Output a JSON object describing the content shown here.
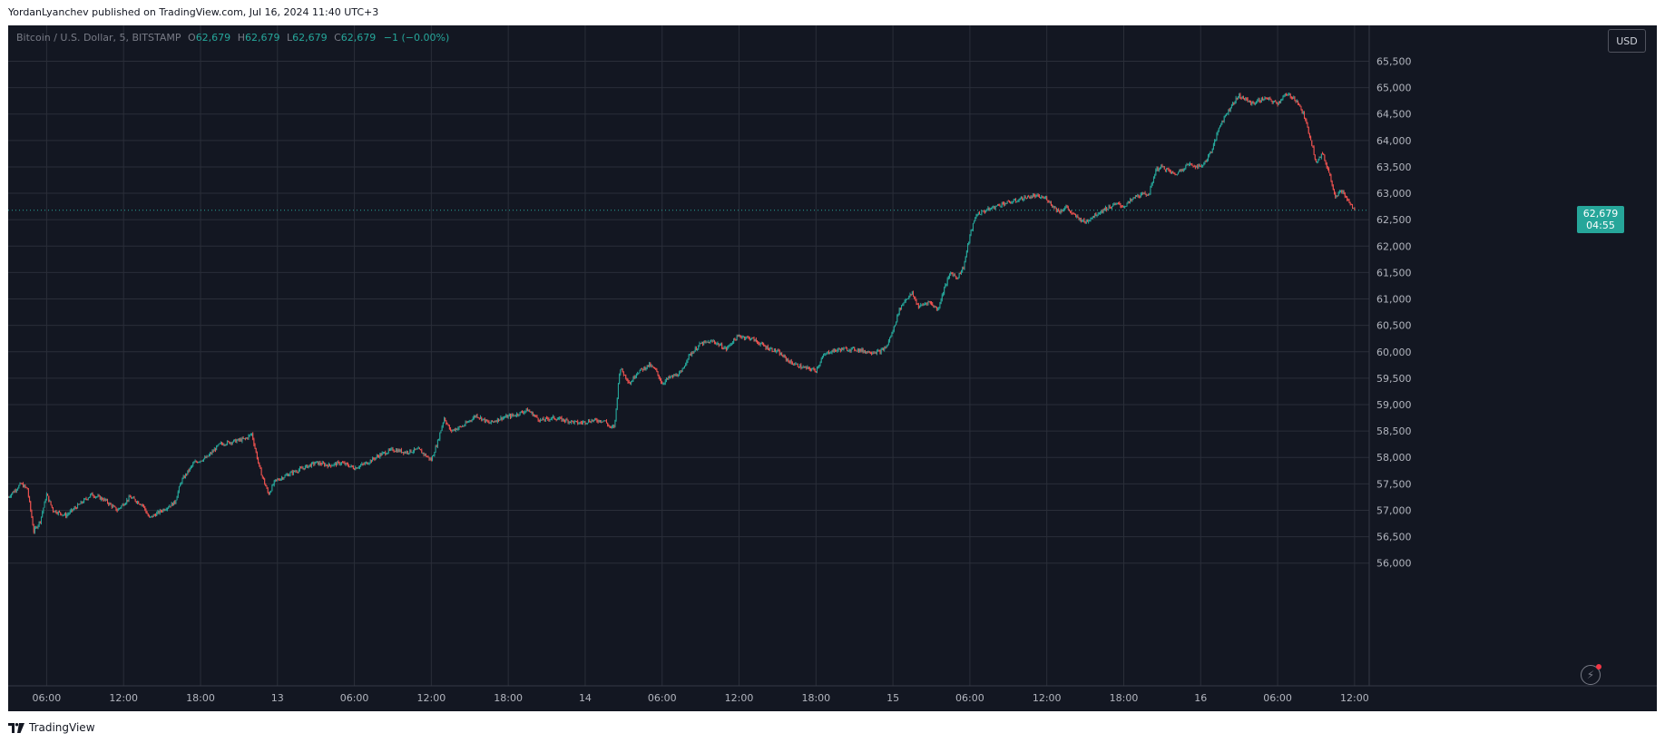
{
  "publisher_line": "YordanLyanchev published on TradingView.com, Jul 16, 2024 11:40 UTC+3",
  "legend": {
    "symbol": "Bitcoin / U.S. Dollar, 5, BITSTAMP",
    "o_label": "O",
    "o_value": "62,679",
    "h_label": "H",
    "h_value": "62,679",
    "l_label": "L",
    "l_value": "62,679",
    "c_label": "C",
    "c_value": "62,679",
    "change": "−1 (−0.00%)"
  },
  "currency_button": "USD",
  "price_badge": {
    "price": "62,679",
    "countdown": "04:55"
  },
  "footer_brand": "TradingView",
  "colors": {
    "background": "#131722",
    "grid": "#2a2e39",
    "up": "#26a69a",
    "down": "#ef5350",
    "axis_text": "#b2b5be"
  },
  "icons": {
    "flash": "lightning-icon",
    "logo": "tradingview-logo-icon"
  },
  "chart_data": {
    "type": "candlestick",
    "title": "Bitcoin / U.S. Dollar, 5, BITSTAMP",
    "y_ticks": [
      56000,
      56500,
      57000,
      57500,
      58000,
      58500,
      59000,
      59500,
      60000,
      60500,
      61000,
      61500,
      62000,
      62500,
      63000,
      63500,
      64000,
      64500,
      65000,
      65500
    ],
    "y_tick_labels": [
      "56,000",
      "56,500",
      "57,000",
      "57,500",
      "58,000",
      "58,500",
      "59,000",
      "59,500",
      "60,000",
      "60,500",
      "61,000",
      "61,500",
      "62,000",
      "62,500",
      "63,000",
      "63,500",
      "64,000",
      "64,500",
      "65,000",
      "65,500"
    ],
    "ylim": [
      55600,
      65800
    ],
    "x_ticks": [
      "06:00",
      "12:00",
      "18:00",
      "13",
      "06:00",
      "12:00",
      "18:00",
      "14",
      "06:00",
      "12:00",
      "18:00",
      "15",
      "06:00",
      "12:00",
      "18:00",
      "16",
      "06:00",
      "12:00"
    ],
    "x_hours_from_start": [
      3,
      9,
      15,
      21,
      27,
      33,
      39,
      45,
      51,
      57,
      63,
      69,
      75,
      81,
      87,
      93,
      99,
      105
    ],
    "xlim_hours": [
      0,
      106
    ],
    "last_price": 62679,
    "anchors": [
      [
        0.0,
        57250
      ],
      [
        1.0,
        57500
      ],
      [
        1.5,
        57400
      ],
      [
        2.0,
        56600
      ],
      [
        2.5,
        56800
      ],
      [
        3.0,
        57300
      ],
      [
        3.5,
        57000
      ],
      [
        4.5,
        56900
      ],
      [
        5.5,
        57100
      ],
      [
        6.5,
        57300
      ],
      [
        7.5,
        57200
      ],
      [
        8.5,
        57000
      ],
      [
        9.5,
        57250
      ],
      [
        10.5,
        57100
      ],
      [
        11.0,
        56850
      ],
      [
        12.0,
        57000
      ],
      [
        13.0,
        57150
      ],
      [
        13.5,
        57550
      ],
      [
        14.5,
        57900
      ],
      [
        15.5,
        58000
      ],
      [
        16.5,
        58250
      ],
      [
        17.5,
        58300
      ],
      [
        18.5,
        58350
      ],
      [
        19.0,
        58450
      ],
      [
        19.6,
        57800
      ],
      [
        20.3,
        57300
      ],
      [
        20.8,
        57550
      ],
      [
        22.0,
        57700
      ],
      [
        23.0,
        57800
      ],
      [
        24.0,
        57900
      ],
      [
        25.0,
        57850
      ],
      [
        26.0,
        57900
      ],
      [
        27.0,
        57800
      ],
      [
        28.0,
        57900
      ],
      [
        29.0,
        58050
      ],
      [
        30.0,
        58150
      ],
      [
        31.0,
        58100
      ],
      [
        32.0,
        58150
      ],
      [
        33.0,
        57950
      ],
      [
        33.5,
        58300
      ],
      [
        34.0,
        58750
      ],
      [
        34.5,
        58500
      ],
      [
        35.5,
        58600
      ],
      [
        36.5,
        58800
      ],
      [
        37.5,
        58650
      ],
      [
        38.5,
        58750
      ],
      [
        39.5,
        58800
      ],
      [
        40.5,
        58900
      ],
      [
        41.5,
        58700
      ],
      [
        42.5,
        58750
      ],
      [
        43.5,
        58700
      ],
      [
        44.5,
        58650
      ],
      [
        45.5,
        58700
      ],
      [
        46.5,
        58700
      ],
      [
        47.0,
        58550
      ],
      [
        47.3,
        58600
      ],
      [
        47.7,
        59700
      ],
      [
        48.5,
        59400
      ],
      [
        49.0,
        59600
      ],
      [
        50.0,
        59750
      ],
      [
        50.5,
        59650
      ],
      [
        51.0,
        59400
      ],
      [
        51.5,
        59500
      ],
      [
        52.5,
        59600
      ],
      [
        53.0,
        59900
      ],
      [
        54.0,
        60150
      ],
      [
        55.0,
        60200
      ],
      [
        56.0,
        60050
      ],
      [
        56.5,
        60200
      ],
      [
        57.0,
        60300
      ],
      [
        58.0,
        60250
      ],
      [
        59.0,
        60100
      ],
      [
        60.0,
        60000
      ],
      [
        61.0,
        59800
      ],
      [
        62.0,
        59700
      ],
      [
        63.0,
        59650
      ],
      [
        63.5,
        59900
      ],
      [
        64.0,
        60000
      ],
      [
        65.0,
        60050
      ],
      [
        66.0,
        60050
      ],
      [
        67.0,
        60000
      ],
      [
        68.0,
        60000
      ],
      [
        68.5,
        60100
      ],
      [
        69.0,
        60400
      ],
      [
        69.5,
        60800
      ],
      [
        70.0,
        61000
      ],
      [
        70.5,
        61100
      ],
      [
        71.0,
        60850
      ],
      [
        71.8,
        60950
      ],
      [
        72.5,
        60800
      ],
      [
        73.0,
        61200
      ],
      [
        73.5,
        61500
      ],
      [
        74.0,
        61400
      ],
      [
        74.5,
        61600
      ],
      [
        75.0,
        62200
      ],
      [
        75.5,
        62600
      ],
      [
        76.5,
        62700
      ],
      [
        77.5,
        62800
      ],
      [
        78.5,
        62850
      ],
      [
        79.0,
        62900
      ],
      [
        80.0,
        62950
      ],
      [
        81.0,
        62900
      ],
      [
        81.5,
        62750
      ],
      [
        82.0,
        62650
      ],
      [
        82.5,
        62750
      ],
      [
        83.0,
        62600
      ],
      [
        84.0,
        62450
      ],
      [
        84.5,
        62550
      ],
      [
        85.5,
        62700
      ],
      [
        86.5,
        62800
      ],
      [
        87.0,
        62750
      ],
      [
        88.0,
        62950
      ],
      [
        89.0,
        63000
      ],
      [
        89.5,
        63450
      ],
      [
        90.0,
        63500
      ],
      [
        91.0,
        63350
      ],
      [
        92.0,
        63550
      ],
      [
        93.0,
        63500
      ],
      [
        93.5,
        63650
      ],
      [
        94.0,
        63900
      ],
      [
        94.5,
        64300
      ],
      [
        95.0,
        64500
      ],
      [
        95.5,
        64700
      ],
      [
        96.0,
        64850
      ],
      [
        97.0,
        64700
      ],
      [
        98.0,
        64800
      ],
      [
        99.0,
        64700
      ],
      [
        99.5,
        64850
      ],
      [
        100.0,
        64850
      ],
      [
        100.5,
        64750
      ],
      [
        101.0,
        64500
      ],
      [
        101.5,
        64100
      ],
      [
        102.0,
        63600
      ],
      [
        102.5,
        63750
      ],
      [
        103.0,
        63400
      ],
      [
        103.5,
        62950
      ],
      [
        104.0,
        63050
      ],
      [
        104.5,
        62850
      ],
      [
        105.0,
        62679
      ]
    ]
  }
}
